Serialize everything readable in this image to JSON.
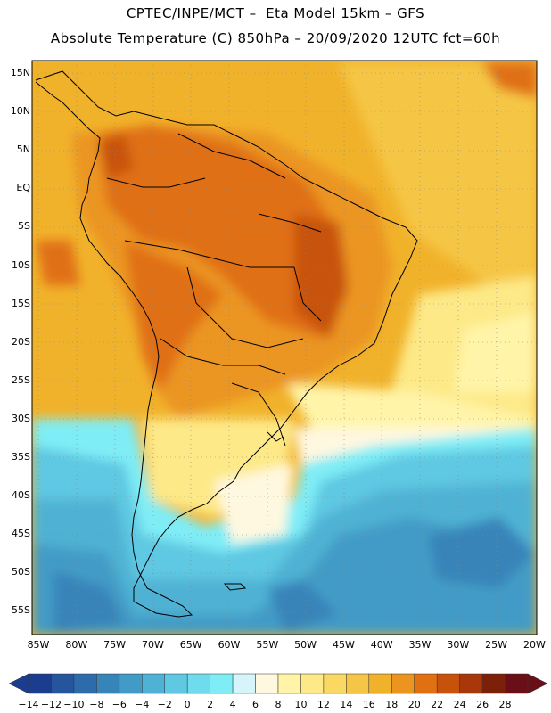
{
  "header": {
    "title_line1": "CPTEC/INPE/MCT –  Eta Model 15km – GFS",
    "title_line2": "Absolute Temperature (C) 850hPa – 20/09/2020 12UTC fct=60h"
  },
  "map": {
    "lat_labels": [
      "15N",
      "10N",
      "5N",
      "EQ",
      "5S",
      "10S",
      "15S",
      "20S",
      "25S",
      "30S",
      "35S",
      "40S",
      "45S",
      "50S",
      "55S"
    ],
    "lon_labels": [
      "85W",
      "80W",
      "75W",
      "70W",
      "65W",
      "60W",
      "55W",
      "50W",
      "45W",
      "40W",
      "35W",
      "30W",
      "25W",
      "20W"
    ],
    "field": "Absolute Temperature (C) 850hPa"
  },
  "colorbar": {
    "labels": [
      "-14",
      "-12",
      "-10",
      "-8",
      "-6",
      "-4",
      "-2",
      "0",
      "2",
      "4",
      "6",
      "8",
      "10",
      "12",
      "14",
      "16",
      "18",
      "20",
      "22",
      "24",
      "26",
      "28"
    ],
    "colors": [
      "#1b3d8f",
      "#24559d",
      "#2d6bab",
      "#3784b9",
      "#429bc6",
      "#4fb2d4",
      "#5fc8e2",
      "#6fdcee",
      "#7fedf6",
      "#d6f5fb",
      "#fff8e0",
      "#fff4a8",
      "#fde987",
      "#f9d863",
      "#f5c645",
      "#f1b22b",
      "#eb9520",
      "#e07012",
      "#c8520c",
      "#a8380a",
      "#7c200a",
      "#6a0f18"
    ]
  }
}
